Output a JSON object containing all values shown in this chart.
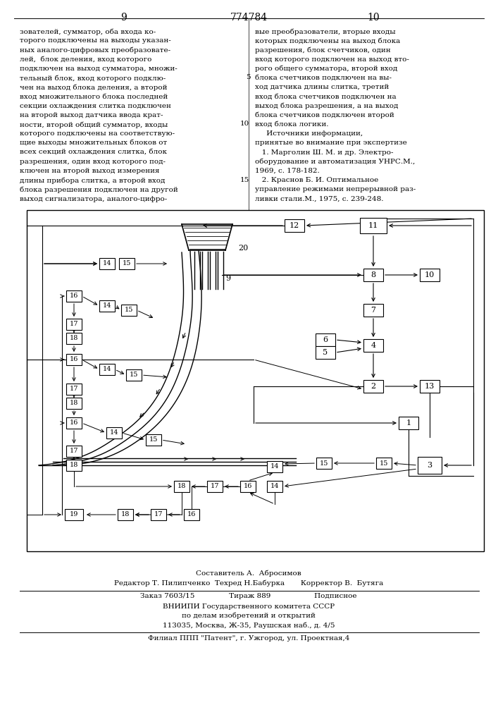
{
  "page_numbers": [
    "9",
    "774784",
    "10"
  ],
  "left_text": [
    "зователей, сумматор, оба входа ко-",
    "торого подключены на выходы указан-",
    "ных аналого-цифровых преобразовате-",
    "лей,  блок деления, вход которого",
    "подключен на выход сумматора, множи-",
    "тельный блок, вход которого подклю-",
    "чен на выход блока деления, а второй",
    "вход множительного блока последней",
    "секции охлаждения слитка подключен",
    "на второй выход датчика ввода крат-",
    "ности, второй общий сумматор, входы",
    "которого подключены на соответствую-",
    "щие выходы множительных блоков от",
    "всех секций охлаждения слитка, блок",
    "разрешения, один вход которого под-",
    "ключен на второй выход измерения",
    "длины прибора слитка, а второй вход",
    "блока разрешения подключен на другой",
    "выход сигнализатора, аналого-цифро-"
  ],
  "right_text": [
    "вые преобразователи, вторые входы",
    "которых подключены на выход блока",
    "разрешения, блок счетчиков, один",
    "вход которого подключен на выход вто-",
    "рого общего сумматора, второй вход",
    "блока счетчиков подключен на вы-",
    "ход датчика длины слитка, третий",
    "вход блока счетчиков подключен на",
    "выход блока разрешения, а на выход",
    "блока счетчиков подключен второй",
    "вход блока логики.",
    "     Источники информации,",
    "принятые во внимание при экспертизе",
    "   1. Марголин Ш. М. и др. Электро-",
    "оборудование и автоматизация УНРС.М.,",
    "1969, с. 178-182.",
    "   2. Краснов Б. И. Оптимальное",
    "управление режимами непрерывной раз-",
    "ливки стали.М., 1975, с. 239-248."
  ],
  "footer_line1": "Составитель А.  Абросимов",
  "footer_line2": "Редактор Т. Пилипченко  Техред Н.Бабурка       Корректор В.  Бутяга",
  "footer_line3": "Заказ 7603/15               Тираж 889                   Подписное",
  "footer_line4": "ВНИИПИ Государственного комитета СССР",
  "footer_line5": "по делам изобретений и открытий",
  "footer_line6": "113035, Москва, Ж-35, Раушская наб., д. 4/5",
  "footer_line7": "Филиал ППП \"Патент\", г. Ужгород, ул. Проектная,4",
  "bg_color": "#ffffff"
}
